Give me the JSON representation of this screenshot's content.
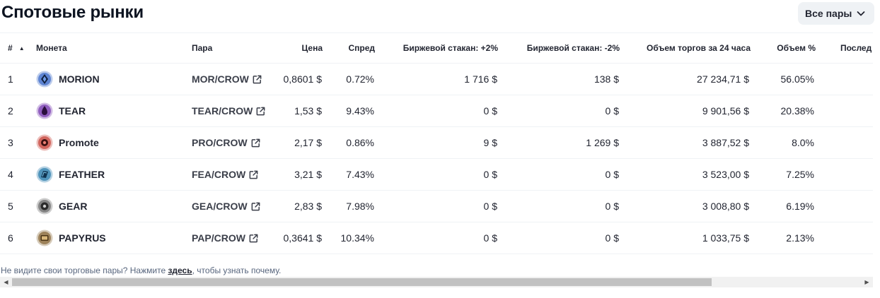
{
  "page": {
    "title": "Спотовые рынки"
  },
  "filter": {
    "label": "Все пары",
    "icon": "chevron-down-icon"
  },
  "table": {
    "headers": {
      "num": "#",
      "coin": "Монета",
      "pair": "Пара",
      "price": "Цена",
      "spread": "Спред",
      "depth_plus": "Биржевой стакан: +2%",
      "depth_minus": "Биржевой стакан: -2%",
      "volume": "Объем торгов за 24 часа",
      "volume_pct": "Объем %",
      "last": "Послед"
    },
    "sort": {
      "column": "num",
      "direction": "ascending",
      "icon": "sort-up-icon"
    },
    "rows": [
      {
        "num": "1",
        "coin": "MORION",
        "icon_color": "#3f6cc9",
        "pair": "MOR/CROW",
        "price": "0,8601 $",
        "spread": "0.72%",
        "depth_plus": "1 716 $",
        "depth_minus": "138 $",
        "volume": "27 234,71 $",
        "volume_pct": "56.05%"
      },
      {
        "num": "2",
        "coin": "TEAR",
        "icon_color": "#7a3fb3",
        "pair": "TEAR/CROW",
        "price": "1,53 $",
        "spread": "9.43%",
        "depth_plus": "0 $",
        "depth_minus": "0 $",
        "volume": "9 901,56 $",
        "volume_pct": "20.38%"
      },
      {
        "num": "3",
        "coin": "Promote",
        "icon_color": "#c8483f",
        "pair": "PRO/CROW",
        "price": "2,17 $",
        "spread": "0.86%",
        "depth_plus": "9 $",
        "depth_minus": "1 269 $",
        "volume": "3 887,52 $",
        "volume_pct": "8.0%"
      },
      {
        "num": "4",
        "coin": "FEATHER",
        "icon_color": "#2e7fae",
        "pair": "FEA/CROW",
        "price": "3,21 $",
        "spread": "7.43%",
        "depth_plus": "0 $",
        "depth_minus": "0 $",
        "volume": "3 523,00 $",
        "volume_pct": "7.25%"
      },
      {
        "num": "5",
        "coin": "GEAR",
        "icon_color": "#6e6e6e",
        "pair": "GEA/CROW",
        "price": "2,83 $",
        "spread": "7.98%",
        "depth_plus": "0 $",
        "depth_minus": "0 $",
        "volume": "3 008,80 $",
        "volume_pct": "6.19%"
      },
      {
        "num": "6",
        "coin": "PAPYRUS",
        "icon_color": "#8a6a3a",
        "pair": "PAP/CROW",
        "price": "0,3641 $",
        "spread": "10.34%",
        "depth_plus": "0 $",
        "depth_minus": "0 $",
        "volume": "1 033,75 $",
        "volume_pct": "2.13%"
      }
    ]
  },
  "footer_note": {
    "before": "Не видите свои торговые пары? Нажмите ",
    "link": "здесь",
    "after": ", чтобы узнать почему."
  }
}
